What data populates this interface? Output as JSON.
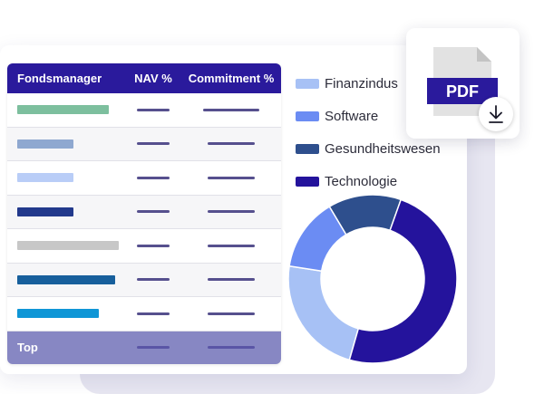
{
  "table": {
    "headers": {
      "manager": "Fondsmanager",
      "nav": "NAV %",
      "commitment": "Commitment %"
    },
    "rows": [
      {
        "bar_color": "#7dbf9e",
        "bar_fraction": 0.78,
        "nav_dash": 0.65,
        "commit_dash": 0.62
      },
      {
        "bar_color": "#8fa8d0",
        "bar_fraction": 0.48,
        "nav_dash": 0.65,
        "commit_dash": 0.52
      },
      {
        "bar_color": "#b9cdf7",
        "bar_fraction": 0.48,
        "nav_dash": 0.65,
        "commit_dash": 0.52
      },
      {
        "bar_color": "#22398c",
        "bar_fraction": 0.48,
        "nav_dash": 0.65,
        "commit_dash": 0.52
      },
      {
        "bar_color": "#c7c7c7",
        "bar_fraction": 0.86,
        "nav_dash": 0.65,
        "commit_dash": 0.52
      },
      {
        "bar_color": "#175f9c",
        "bar_fraction": 0.83,
        "nav_dash": 0.65,
        "commit_dash": 0.52
      },
      {
        "bar_color": "#0f96d6",
        "bar_fraction": 0.69,
        "nav_dash": 0.65,
        "commit_dash": 0.52
      }
    ],
    "footer": {
      "label": "Top",
      "nav_dash": 0.65,
      "commit_dash": 0.52
    }
  },
  "legend": [
    {
      "label": "Finanzindus",
      "color": "#a7c1f5"
    },
    {
      "label": "Software",
      "color": "#6b8cf3"
    },
    {
      "label": "Gesundheitswesen",
      "color": "#2e4f8d"
    },
    {
      "label": "Technologie",
      "color": "#24139c"
    }
  ],
  "chart_data": {
    "type": "pie",
    "categories": [
      "Finanzindus",
      "Software",
      "Gesundheitswesen",
      "Technologie"
    ],
    "values": [
      23,
      14,
      14,
      49
    ],
    "colors": [
      "#a7c1f5",
      "#6b8cf3",
      "#2e4f8d",
      "#24139c"
    ],
    "start_angle_deg": -164,
    "donut": true
  },
  "pdf_card": {
    "label": "PDF",
    "icon": "pdf-file-icon",
    "action_icon": "download-icon"
  }
}
